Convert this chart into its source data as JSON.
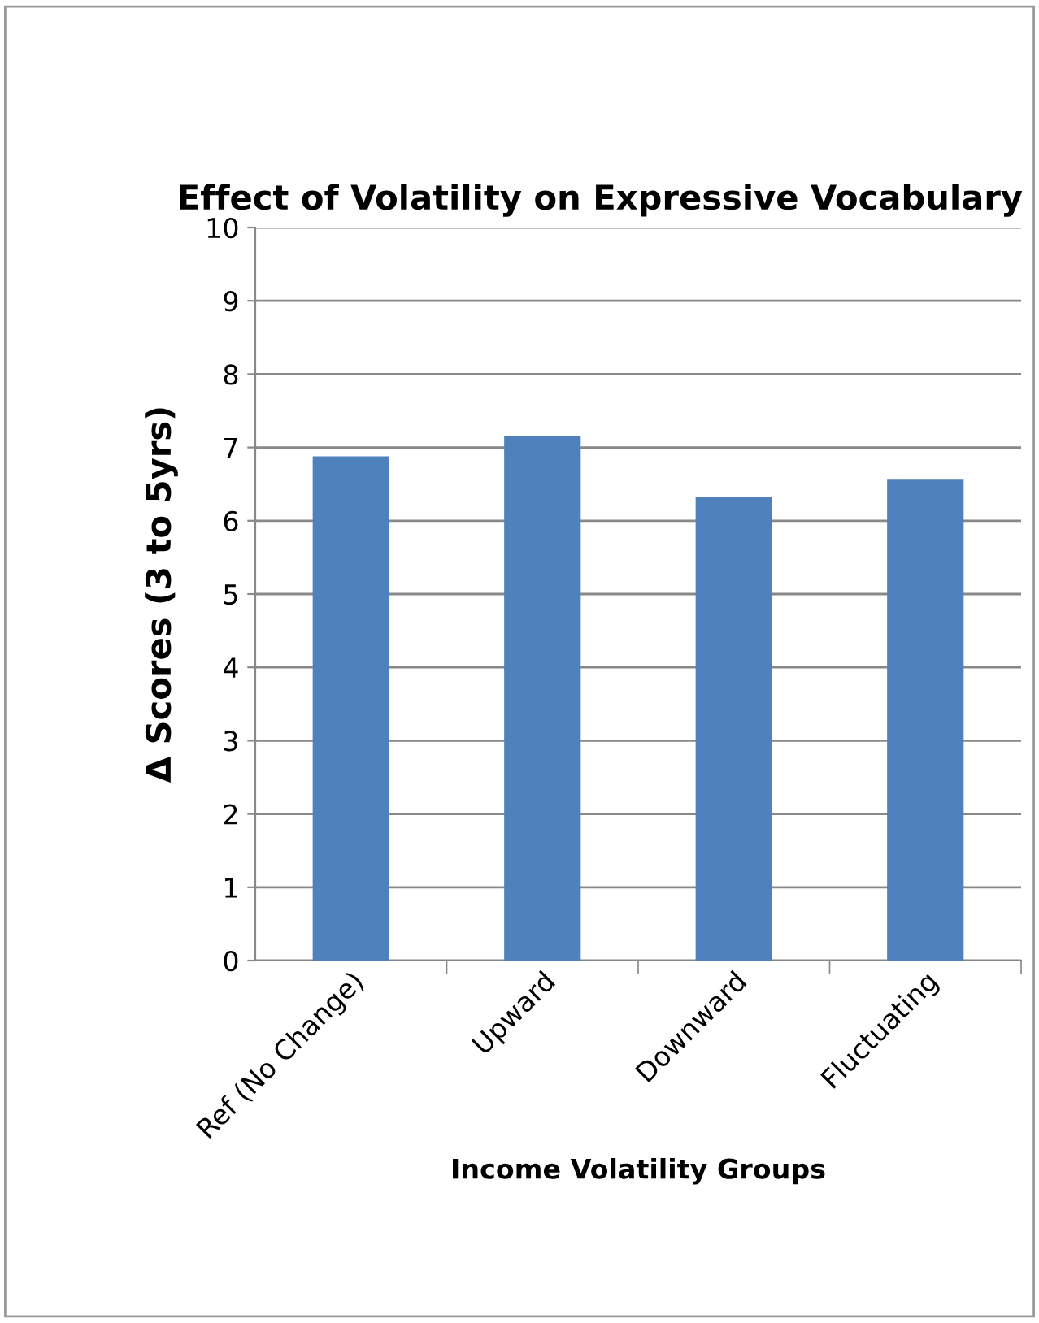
{
  "chart_data": {
    "type": "bar",
    "title": "Effect of Volatility on Expressive Vocabulary",
    "xlabel": "Income Volatility Groups",
    "ylabel": "Δ Scores (3 to 5yrs)",
    "categories": [
      "Ref (No Change)",
      "Upward",
      "Downward",
      "Fluctuating"
    ],
    "values": [
      6.88,
      7.15,
      6.33,
      6.56
    ],
    "color": "#4f81bd",
    "ylim": [
      0,
      10
    ],
    "yticks": [
      0,
      1,
      2,
      3,
      4,
      5,
      6,
      7,
      8,
      9,
      10
    ],
    "grid": "y",
    "legend": false
  }
}
